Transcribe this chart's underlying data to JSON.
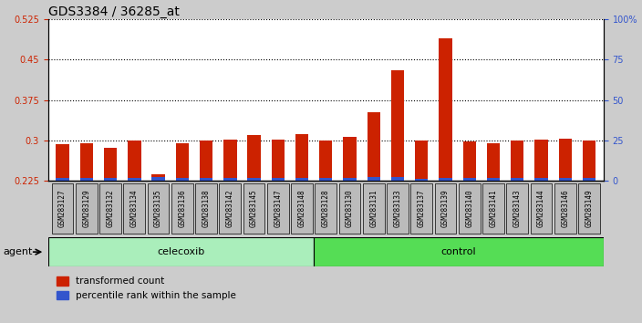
{
  "title": "GDS3384 / 36285_at",
  "samples": [
    "GSM283127",
    "GSM283129",
    "GSM283132",
    "GSM283134",
    "GSM283135",
    "GSM283136",
    "GSM283138",
    "GSM283142",
    "GSM283145",
    "GSM283147",
    "GSM283148",
    "GSM283128",
    "GSM283130",
    "GSM283131",
    "GSM283133",
    "GSM283137",
    "GSM283139",
    "GSM283140",
    "GSM283141",
    "GSM283143",
    "GSM283144",
    "GSM283146",
    "GSM283149"
  ],
  "red_values": [
    0.293,
    0.295,
    0.287,
    0.3,
    0.237,
    0.295,
    0.3,
    0.301,
    0.31,
    0.302,
    0.312,
    0.3,
    0.307,
    0.352,
    0.43,
    0.3,
    0.49,
    0.298,
    0.295,
    0.3,
    0.302,
    0.303,
    0.3
  ],
  "blue_values": [
    0.006,
    0.006,
    0.006,
    0.005,
    0.007,
    0.005,
    0.005,
    0.005,
    0.005,
    0.006,
    0.005,
    0.006,
    0.006,
    0.007,
    0.007,
    0.004,
    0.005,
    0.005,
    0.006,
    0.005,
    0.006,
    0.005,
    0.005
  ],
  "celecoxib_count": 11,
  "control_count": 12,
  "ymin": 0.225,
  "ymax": 0.525,
  "yticks": [
    0.225,
    0.3,
    0.375,
    0.45,
    0.525
  ],
  "ytick_labels": [
    "0.225",
    "0.3",
    "0.375",
    "0.45",
    "0.525"
  ],
  "right_yticks_pct": [
    0,
    25,
    50,
    75,
    100
  ],
  "right_ytick_labels": [
    "0",
    "25",
    "50",
    "75",
    "100%"
  ],
  "bar_color_red": "#CC2200",
  "bar_color_blue": "#3355CC",
  "celecoxib_color": "#AAEEBB",
  "control_color": "#55DD55",
  "label_color_red": "#CC2200",
  "label_color_blue": "#3355CC",
  "background_fig": "#CCCCCC",
  "background_plot": "#FFFFFF",
  "ticklabel_bg": "#BBBBBB",
  "agent_label": "agent",
  "celecoxib_label": "celecoxib",
  "control_label": "control",
  "legend_red": "transformed count",
  "legend_blue": "percentile rank within the sample",
  "title_fontsize": 10,
  "tick_fontsize": 7,
  "bar_width": 0.55
}
